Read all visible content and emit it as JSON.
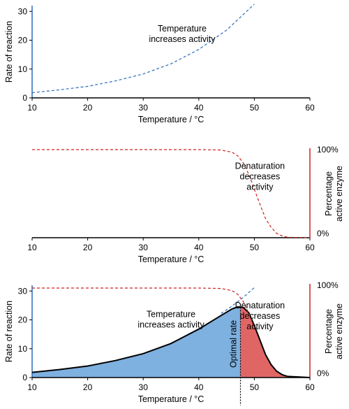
{
  "chart_data": [
    {
      "type": "line",
      "xlabel": "Temperature / °C",
      "ylabel": "Rate of reaction",
      "xlim": [
        10,
        60
      ],
      "ylim": [
        0,
        32
      ],
      "x_ticks": [
        10,
        20,
        30,
        40,
        50,
        60
      ],
      "y_ticks": [
        0,
        10,
        20,
        30
      ],
      "series": [
        {
          "style": "dashed",
          "color": "#2a6ebb",
          "x": [
            10,
            15,
            20,
            25,
            30,
            35,
            40,
            45,
            50
          ],
          "y": [
            1.8,
            2.8,
            4.0,
            5.9,
            8.3,
            11.8,
            16.8,
            23.5,
            32.5
          ]
        }
      ],
      "annotations": [
        {
          "lines": [
            "Temperature",
            "increases activity"
          ],
          "x": 37,
          "y": 23
        }
      ]
    },
    {
      "type": "line",
      "xlabel": "Temperature / °C",
      "y2label": "Percentage active enzyme",
      "xlim": [
        10,
        60
      ],
      "ylim": [
        0,
        100
      ],
      "x_ticks": [
        10,
        20,
        30,
        40,
        50,
        60
      ],
      "y2_tick_labels": [
        {
          "value": 100,
          "label": "100%"
        },
        {
          "value": 0,
          "label": "0%"
        }
      ],
      "series": [
        {
          "style": "dashed",
          "color": "#cc2222",
          "x": [
            10,
            20,
            30,
            40,
            44,
            46,
            47,
            48,
            49,
            50,
            51,
            52,
            53,
            54,
            55,
            56,
            60
          ],
          "y": [
            100,
            100,
            100,
            100,
            99.5,
            97,
            93,
            85,
            72,
            55,
            38,
            22,
            12,
            5,
            2,
            0.5,
            0
          ]
        }
      ],
      "annotations": [
        {
          "lines": [
            "Denaturation",
            "decreases",
            "activity"
          ],
          "x": 51,
          "y": 78
        }
      ]
    },
    {
      "type": "area",
      "xlabel": "Temperature / °C",
      "ylabel": "Rate of reaction",
      "y2label": "Percentage active enzyme",
      "xlim": [
        10,
        60
      ],
      "ylim": [
        0,
        32
      ],
      "x_ticks": [
        10,
        20,
        30,
        40,
        50,
        60
      ],
      "y_ticks": [
        0,
        10,
        20,
        30
      ],
      "y2_tick_labels": [
        {
          "value": 100,
          "label": "100%"
        },
        {
          "value": 0,
          "label": "0%"
        }
      ],
      "optimum_x": 47.5,
      "optimum_label": "Optimal rate",
      "series": [
        {
          "style": "solid",
          "color": "#000000",
          "fill_below_optimum": "#7eb0e0",
          "fill_above_optimum": "#e06666",
          "x": [
            10,
            15,
            20,
            25,
            30,
            35,
            40,
            44,
            46,
            47,
            48,
            49,
            50,
            51,
            52,
            53,
            54,
            55,
            56,
            60
          ],
          "y": [
            1.8,
            2.8,
            4.0,
            5.9,
            8.3,
            11.8,
            16.8,
            21.5,
            23.8,
            24.5,
            24.3,
            22.5,
            18.0,
            13.0,
            8.0,
            4.5,
            2.2,
            1.0,
            0.4,
            0
          ]
        },
        {
          "style": "dashed",
          "color": "#2a6ebb",
          "x": [
            44,
            46,
            48,
            50
          ],
          "y": [
            22.2,
            24.8,
            27.8,
            31.2
          ]
        },
        {
          "style": "dashed",
          "color": "#cc2222",
          "axis": "y2",
          "x": [
            10,
            20,
            30,
            40,
            44,
            46,
            47,
            48,
            49,
            50
          ],
          "y": [
            100,
            100,
            100,
            100,
            99.5,
            97,
            93,
            85,
            72,
            55
          ]
        }
      ],
      "annotations": [
        {
          "lines": [
            "Temperature",
            "increases activity"
          ],
          "x": 35,
          "y": 21
        },
        {
          "lines": [
            "Denaturation",
            "decreases",
            "activity"
          ],
          "x": 51,
          "y": 24
        }
      ]
    }
  ]
}
